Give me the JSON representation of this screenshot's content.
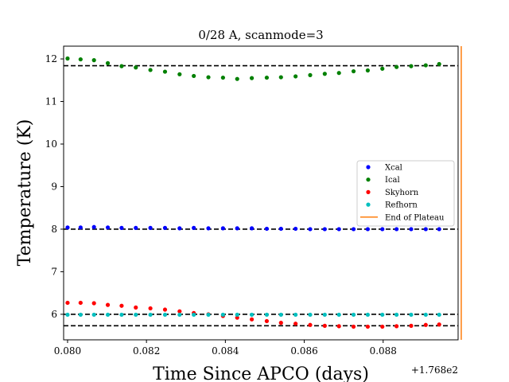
{
  "chart_data": {
    "type": "scatter",
    "title": "0/28 A, scanmode=3",
    "xlabel": "Time Since APCO (days)",
    "ylabel": "Temperature (K)",
    "x_offset_label": "+1.768e2",
    "xlim": [
      0.0799,
      0.0899
    ],
    "ylim": [
      5.4,
      12.3
    ],
    "x_ticks": [
      0.08,
      0.082,
      0.084,
      0.086,
      0.088
    ],
    "x_tick_labels": [
      "0.080",
      "0.082",
      "0.084",
      "0.086",
      "0.088"
    ],
    "y_ticks": [
      6,
      7,
      8,
      9,
      10,
      11,
      12
    ],
    "y_tick_labels": [
      "6",
      "7",
      "8",
      "9",
      "10",
      "11",
      "12"
    ],
    "grid": false,
    "legend_position": "center-right",
    "x": [
      0.08,
      0.08033,
      0.08067,
      0.08102,
      0.08137,
      0.08173,
      0.0821,
      0.08247,
      0.08284,
      0.0832,
      0.08357,
      0.08394,
      0.0843,
      0.08467,
      0.08505,
      0.08541,
      0.08578,
      0.08615,
      0.08652,
      0.08688,
      0.08725,
      0.08761,
      0.08798,
      0.08834,
      0.08871,
      0.08908,
      0.08942
    ],
    "series": [
      {
        "name": "Xcal",
        "color": "#0000ff",
        "values": [
          8.04,
          8.04,
          8.05,
          8.04,
          8.03,
          8.03,
          8.03,
          8.03,
          8.02,
          8.03,
          8.02,
          8.02,
          8.02,
          8.02,
          8.01,
          8.01,
          8.01,
          8.0,
          8.0,
          8.0,
          8.0,
          8.0,
          8.0,
          8.0,
          8.0,
          8.0,
          8.0
        ]
      },
      {
        "name": "Ical",
        "color": "#008000",
        "values": [
          12.01,
          11.99,
          11.97,
          11.9,
          11.83,
          11.8,
          11.74,
          11.7,
          11.64,
          11.6,
          11.57,
          11.56,
          11.53,
          11.55,
          11.56,
          11.57,
          11.59,
          11.62,
          11.65,
          11.67,
          11.71,
          11.73,
          11.77,
          11.81,
          11.83,
          11.85,
          11.88
        ]
      },
      {
        "name": "Skyhorn",
        "color": "#ff0000",
        "values": [
          6.27,
          6.27,
          6.26,
          6.22,
          6.2,
          6.16,
          6.14,
          6.11,
          6.07,
          6.03,
          6.0,
          5.96,
          5.92,
          5.88,
          5.84,
          5.8,
          5.78,
          5.75,
          5.73,
          5.72,
          5.71,
          5.71,
          5.71,
          5.72,
          5.73,
          5.75,
          5.76
        ]
      },
      {
        "name": "Refhorn",
        "color": "#00bfbf",
        "values": [
          5.99,
          5.99,
          5.99,
          5.99,
          5.99,
          5.99,
          5.99,
          5.99,
          5.99,
          5.99,
          5.99,
          5.99,
          5.99,
          5.99,
          5.99,
          5.99,
          5.99,
          5.99,
          5.99,
          5.99,
          5.99,
          5.99,
          5.99,
          5.99,
          5.99,
          5.99,
          5.99
        ]
      }
    ],
    "end_of_plateau": {
      "name": "End of Plateau",
      "color": "#ff7f0e",
      "x": 0.08998
    },
    "reference_lines": [
      11.84,
      8.0,
      6.0,
      5.73
    ]
  }
}
